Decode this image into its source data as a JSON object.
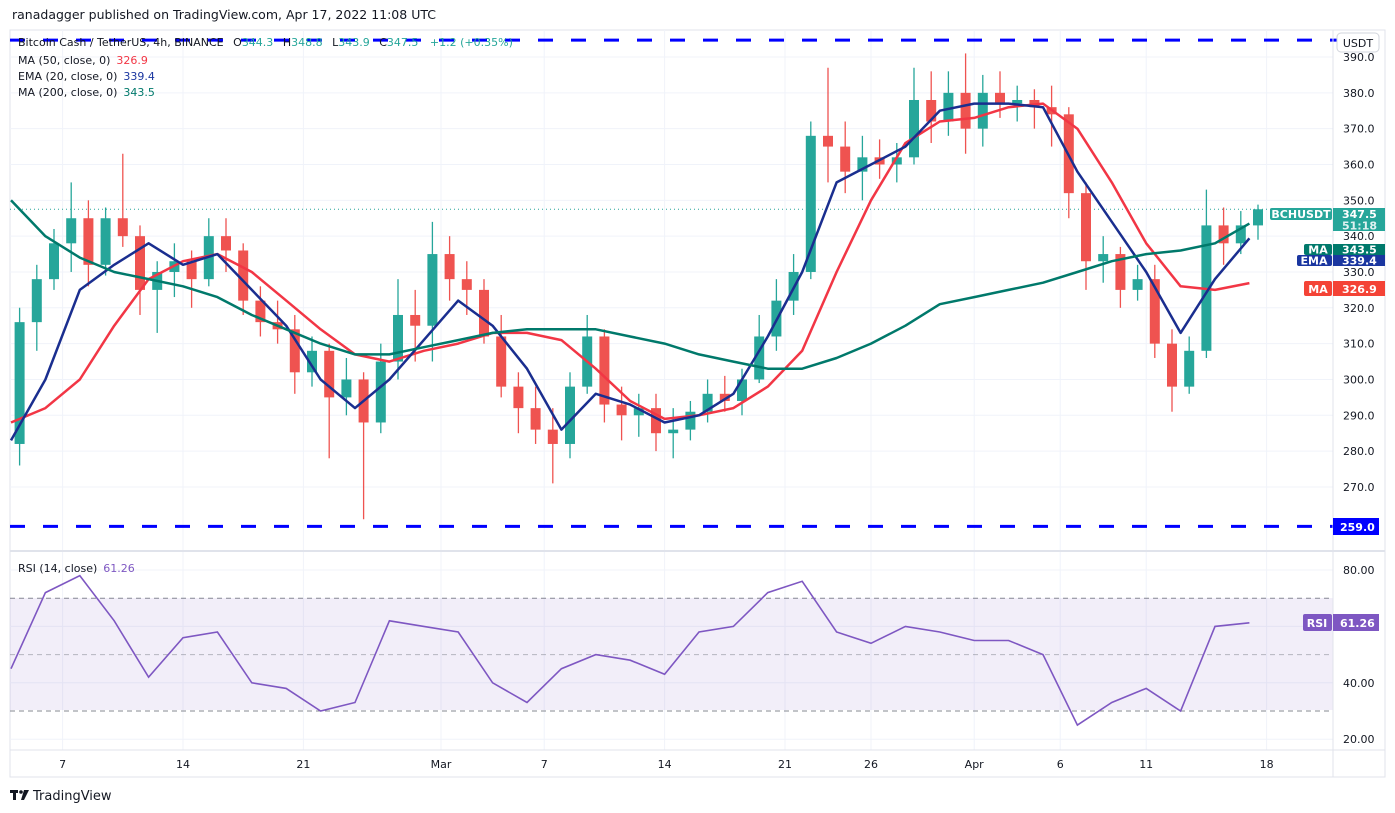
{
  "header": {
    "published": "ranadagger published on TradingView.com, Apr 17, 2022 11:08 UTC"
  },
  "legend": {
    "symbol": "Bitcoin Cash / TetherUS, 4h, BINANCE",
    "open_label": "O",
    "open": "344.3",
    "high_label": "H",
    "high": "348.8",
    "low_label": "L",
    "low": "343.9",
    "close_label": "C",
    "close": "347.5",
    "change": "+1.2 (+0.35%)",
    "ma50_label": "MA (50, close, 0)",
    "ma50_value": "326.9",
    "ema20_label": "EMA (20, close, 0)",
    "ema20_value": "339.4",
    "ma200_label": "MA (200, close, 0)",
    "ma200_value": "343.5",
    "rsi_label": "RSI (14, close)",
    "rsi_value": "61.26"
  },
  "axis": {
    "currency": "USDT",
    "price_ticks": [
      "270.0",
      "280.0",
      "290.0",
      "300.0",
      "310.0",
      "320.0",
      "330.0",
      "340.0",
      "350.0",
      "360.0",
      "370.0",
      "380.0",
      "390.0"
    ],
    "rsi_ticks": [
      "20.00",
      "40.00",
      "80.00"
    ],
    "time_labels": [
      {
        "date": "2022-02-07",
        "label": "7"
      },
      {
        "date": "2022-02-14",
        "label": "14"
      },
      {
        "date": "2022-02-21",
        "label": "21"
      },
      {
        "date": "2022-03-01",
        "label": "Mar"
      },
      {
        "date": "2022-03-07",
        "label": "7"
      },
      {
        "date": "2022-03-14",
        "label": "14"
      },
      {
        "date": "2022-03-21",
        "label": "21"
      },
      {
        "date": "2022-03-26",
        "label": "26"
      },
      {
        "date": "2022-04-01",
        "label": "Apr"
      },
      {
        "date": "2022-04-06",
        "label": "6"
      },
      {
        "date": "2022-04-11",
        "label": "11"
      },
      {
        "date": "2022-04-18",
        "label": "18"
      }
    ]
  },
  "price_labels": {
    "symbol_tag": "BCHUSDT",
    "last": "347.5",
    "countdown": "51:18",
    "ma200_tag": "MA",
    "ma200": "343.5",
    "ema20_tag": "EMA",
    "ema20": "339.4",
    "ma50_tag": "MA",
    "ma50": "326.9",
    "support": "259.0",
    "rsi_tag": "RSI",
    "rsi": "61.26"
  },
  "footer": {
    "brand": "TradingView"
  },
  "colors": {
    "up": "#26a69a",
    "down": "#ef5350",
    "ma50": "#f23645",
    "ema20": "#1a2e8f",
    "ma200": "#00796b",
    "rsi": "#7e57c2",
    "hline": "#0000ff",
    "grid": "#f0f3fa"
  },
  "chart_data": {
    "type": "candlestick",
    "title": "Bitcoin Cash / TetherUS, 4h, BINANCE",
    "ylim": [
      255,
      396
    ],
    "start_date": "2022-02-04",
    "ohlc_daily": [
      [
        282,
        320,
        276,
        316
      ],
      [
        316,
        332,
        308,
        328
      ],
      [
        328,
        342,
        325,
        338
      ],
      [
        338,
        355,
        330,
        345
      ],
      [
        345,
        350,
        326,
        332
      ],
      [
        332,
        348,
        329,
        345
      ],
      [
        345,
        363,
        337,
        340
      ],
      [
        340,
        343,
        318,
        325
      ],
      [
        325,
        333,
        313,
        330
      ],
      [
        330,
        338,
        323,
        333
      ],
      [
        333,
        336,
        320,
        328
      ],
      [
        328,
        345,
        326,
        340
      ],
      [
        340,
        345,
        330,
        336
      ],
      [
        336,
        338,
        318,
        322
      ],
      [
        322,
        326,
        312,
        316
      ],
      [
        316,
        322,
        310,
        314
      ],
      [
        314,
        318,
        296,
        302
      ],
      [
        302,
        312,
        298,
        308
      ],
      [
        308,
        310,
        278,
        295
      ],
      [
        295,
        306,
        290,
        300
      ],
      [
        300,
        302,
        261,
        288
      ],
      [
        288,
        310,
        285,
        305
      ],
      [
        305,
        328,
        300,
        318
      ],
      [
        318,
        325,
        305,
        315
      ],
      [
        315,
        344,
        305,
        335
      ],
      [
        335,
        340,
        322,
        328
      ],
      [
        328,
        333,
        318,
        325
      ],
      [
        325,
        328,
        310,
        312
      ],
      [
        312,
        318,
        295,
        298
      ],
      [
        298,
        302,
        285,
        292
      ],
      [
        292,
        298,
        282,
        286
      ],
      [
        286,
        292,
        271,
        282
      ],
      [
        282,
        302,
        278,
        298
      ],
      [
        298,
        318,
        296,
        312
      ],
      [
        312,
        314,
        288,
        293
      ],
      [
        293,
        298,
        283,
        290
      ],
      [
        290,
        296,
        284,
        292
      ],
      [
        292,
        296,
        280,
        285
      ],
      [
        285,
        292,
        278,
        286
      ],
      [
        286,
        294,
        283,
        291
      ],
      [
        291,
        300,
        288,
        296
      ],
      [
        296,
        301,
        291,
        294
      ],
      [
        294,
        303,
        290,
        300
      ],
      [
        300,
        318,
        299,
        312
      ],
      [
        312,
        328,
        308,
        322
      ],
      [
        322,
        335,
        318,
        330
      ],
      [
        330,
        372,
        328,
        368
      ],
      [
        368,
        387,
        355,
        365
      ],
      [
        365,
        372,
        352,
        358
      ],
      [
        358,
        368,
        350,
        362
      ],
      [
        362,
        367,
        356,
        360
      ],
      [
        360,
        366,
        355,
        362
      ],
      [
        362,
        387,
        360,
        378
      ],
      [
        378,
        386,
        366,
        372
      ],
      [
        372,
        386,
        368,
        380
      ],
      [
        380,
        391,
        363,
        370
      ],
      [
        370,
        385,
        365,
        380
      ],
      [
        380,
        386,
        373,
        377
      ],
      [
        377,
        382,
        372,
        378
      ],
      [
        378,
        381,
        370,
        376
      ],
      [
        376,
        382,
        365,
        374
      ],
      [
        374,
        376,
        345,
        352
      ],
      [
        352,
        355,
        325,
        333
      ],
      [
        333,
        340,
        327,
        335
      ],
      [
        335,
        337,
        320,
        325
      ],
      [
        325,
        332,
        322,
        328
      ],
      [
        328,
        332,
        306,
        310
      ],
      [
        310,
        314,
        291,
        298
      ],
      [
        298,
        312,
        296,
        308
      ],
      [
        308,
        353,
        306,
        343
      ],
      [
        343,
        348,
        332,
        338
      ],
      [
        338,
        347,
        335,
        343
      ],
      [
        343,
        348.8,
        339,
        347.5
      ]
    ],
    "line_dates": [
      "2022-02-04",
      "2022-02-06",
      "2022-02-08",
      "2022-02-10",
      "2022-02-12",
      "2022-02-14",
      "2022-02-16",
      "2022-02-18",
      "2022-02-20",
      "2022-02-22",
      "2022-02-24",
      "2022-02-26",
      "2022-02-28",
      "2022-03-02",
      "2022-03-04",
      "2022-03-06",
      "2022-03-08",
      "2022-03-10",
      "2022-03-12",
      "2022-03-14",
      "2022-03-16",
      "2022-03-18",
      "2022-03-20",
      "2022-03-22",
      "2022-03-24",
      "2022-03-26",
      "2022-03-28",
      "2022-03-30",
      "2022-04-01",
      "2022-04-03",
      "2022-04-05",
      "2022-04-07",
      "2022-04-09",
      "2022-04-11",
      "2022-04-13",
      "2022-04-15",
      "2022-04-17"
    ],
    "series": [
      {
        "name": "MA (50, close, 0)",
        "key": "ma50",
        "values": [
          288,
          292,
          300,
          315,
          328,
          333,
          335,
          330,
          322,
          314,
          307,
          305,
          308,
          310,
          313,
          313,
          311,
          303,
          294,
          289,
          290,
          292,
          298,
          308,
          330,
          350,
          366,
          372,
          373,
          376,
          377,
          370,
          355,
          338,
          326,
          325,
          326.9
        ]
      },
      {
        "name": "EMA (20, close, 0)",
        "key": "ema20",
        "values": [
          283,
          300,
          325,
          332,
          338,
          332,
          335,
          325,
          315,
          300,
          292,
          300,
          311,
          322,
          315,
          303,
          286,
          296,
          293,
          288,
          290,
          296,
          312,
          330,
          355,
          360,
          365,
          375,
          377,
          377,
          376,
          358,
          344,
          330,
          313,
          328,
          339.4
        ]
      },
      {
        "name": "MA (200, close, 0)",
        "key": "ma200",
        "values": [
          350,
          340,
          334,
          330,
          328,
          326,
          323,
          318,
          314,
          310,
          307,
          307,
          309,
          311,
          313,
          314,
          314,
          314,
          312,
          310,
          307,
          305,
          303,
          303,
          306,
          310,
          315,
          321,
          323,
          325,
          327,
          330,
          333,
          335,
          336,
          338,
          343.5
        ]
      }
    ],
    "hlines": [
      394.7,
      259.0
    ],
    "last_price": 347.5,
    "rsi": {
      "name": "RSI (14, close)",
      "ylim": [
        15,
        85
      ],
      "bands": [
        30,
        50,
        70
      ],
      "values": [
        45,
        72,
        78,
        62,
        42,
        56,
        58,
        40,
        38,
        30,
        33,
        62,
        60,
        58,
        40,
        33,
        45,
        50,
        48,
        43,
        58,
        60,
        72,
        76,
        58,
        54,
        60,
        58,
        55,
        55,
        50,
        25,
        33,
        38,
        30,
        60,
        61.26
      ]
    }
  }
}
